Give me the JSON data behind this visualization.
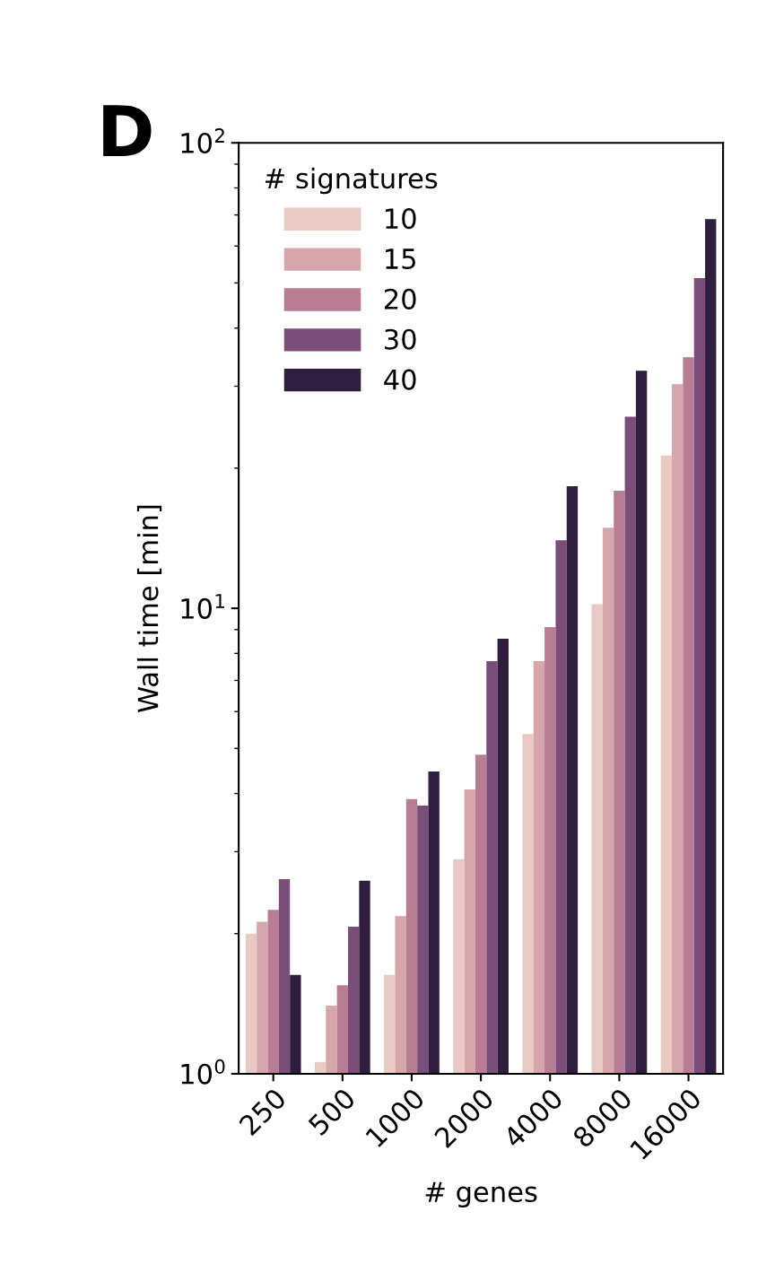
{
  "chart_data": {
    "type": "bar",
    "xlabel": "# genes",
    "ylabel": "Wall time [min]",
    "legend_title": "# signatures",
    "categories": [
      "250",
      "500",
      "1000",
      "2000",
      "4000",
      "8000",
      "16000"
    ],
    "series": [
      {
        "name": "10",
        "color": "#e8c9c4",
        "values": [
          2.0,
          1.06,
          1.63,
          2.89,
          5.37,
          10.2,
          21.3
        ]
      },
      {
        "name": "15",
        "color": "#d6a6ab",
        "values": [
          2.12,
          1.4,
          2.18,
          4.08,
          7.7,
          14.9,
          30.3
        ]
      },
      {
        "name": "20",
        "color": "#b97d93",
        "values": [
          2.25,
          1.55,
          3.89,
          4.85,
          9.11,
          17.9,
          34.6
        ]
      },
      {
        "name": "30",
        "color": "#7b4d79",
        "values": [
          2.62,
          2.07,
          3.77,
          7.7,
          14.0,
          25.8,
          51.2
        ]
      },
      {
        "name": "40",
        "color": "#2f1e3e",
        "values": [
          1.63,
          2.6,
          4.46,
          8.6,
          18.3,
          32.4,
          68.6
        ]
      }
    ],
    "log": "y",
    "ylim": [
      1,
      100
    ],
    "yticks": [
      {
        "value": 1,
        "label": "10$^{0}$"
      },
      {
        "value": 10,
        "label": "10$^{1}$"
      },
      {
        "value": 100,
        "label": "10$^{2}$"
      }
    ],
    "legend": "top left",
    "grid": false,
    "annotations": [
      "D"
    ]
  }
}
